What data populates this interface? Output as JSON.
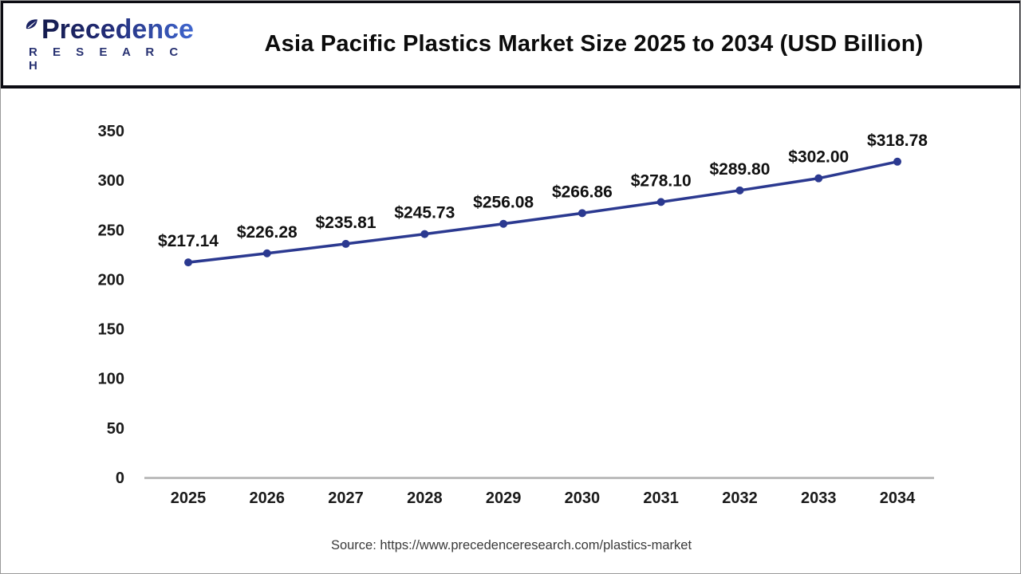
{
  "header": {
    "logo": {
      "line1": "Precedence",
      "line2": "R E S E A R C H"
    },
    "title": "Asia Pacific Plastics Market Size 2025 to 2034 (USD Billion)"
  },
  "chart_data": {
    "type": "line",
    "title": "Asia Pacific Plastics Market Size 2025 to 2034 (USD Billion)",
    "categories": [
      "2025",
      "2026",
      "2027",
      "2028",
      "2029",
      "2030",
      "2031",
      "2032",
      "2033",
      "2034"
    ],
    "values": [
      217.14,
      226.28,
      235.81,
      245.73,
      256.08,
      266.86,
      278.1,
      289.8,
      302.0,
      318.78
    ],
    "point_labels": [
      "$217.14",
      "$226.28",
      "$235.81",
      "$245.73",
      "$256.08",
      "$266.86",
      "$278.10",
      "$289.80",
      "$302.00",
      "$318.78"
    ],
    "xlabel": "",
    "ylabel": "",
    "ylim": [
      0,
      350
    ],
    "yticks": [
      0,
      50,
      100,
      150,
      200,
      250,
      300,
      350
    ],
    "grid": false,
    "legend": "none",
    "line_color": "#2b3990",
    "marker_color": "#2b3990",
    "axis_line_color": "#bcbcbc",
    "tick_label_color": "#1a1a1a",
    "data_label_color": "#111111"
  },
  "footer": {
    "source": "Source: https://www.precedenceresearch.com/plastics-market"
  }
}
